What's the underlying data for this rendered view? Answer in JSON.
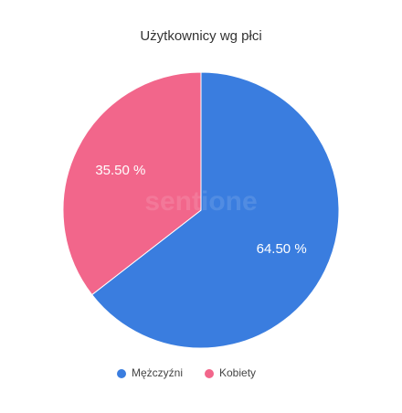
{
  "chart_data": {
    "type": "pie",
    "title": "Użytkownicy wg płci",
    "watermark": "sentione",
    "categories": [
      "Mężczyźni",
      "Kobiety"
    ],
    "values": [
      64.5,
      35.5
    ],
    "value_labels": [
      "64.50 %",
      "35.50 %"
    ],
    "colors": [
      "#3a7ddf",
      "#f2668b"
    ],
    "legend": "bottom"
  }
}
